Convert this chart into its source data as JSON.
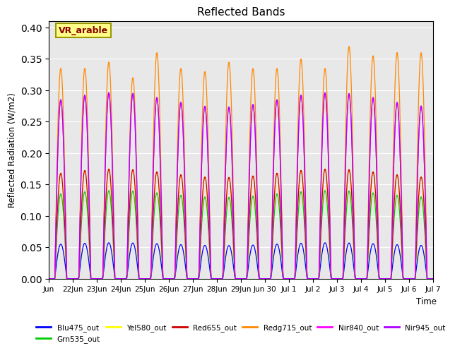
{
  "title": "Reflected Bands",
  "ylabel": "Reflected Radiation (W/m2)",
  "xlabel": "Time",
  "annotation": "VR_arable",
  "ylim": [
    0,
    0.41
  ],
  "background_color": "#e8e8e8",
  "lines": [
    {
      "label": "Blu475_out",
      "color": "#0000ff",
      "peak_scale": 0.055
    },
    {
      "label": "Grn535_out",
      "color": "#00cc00",
      "peak_scale": 0.135
    },
    {
      "label": "Yel580_out",
      "color": "#ffff00",
      "peak_scale": 0.168
    },
    {
      "label": "Red655_out",
      "color": "#cc0000",
      "peak_scale": 0.168
    },
    {
      "label": "Redg715_out",
      "color": "#ff8800",
      "peak_scale": 0.345
    },
    {
      "label": "Nir840_out",
      "color": "#ff00ff",
      "peak_scale": 0.285
    },
    {
      "label": "Nir945_out",
      "color": "#aa00ff",
      "peak_scale": 0.285
    }
  ],
  "tick_labels": [
    "Jun",
    "22Jun",
    "23Jun",
    "24Jun",
    "25Jun",
    "26Jun",
    "27Jun",
    "28Jun",
    "29Jun",
    "Jun 30",
    "Jul 1",
    "Jul 2",
    "Jul 3",
    "Jul 4",
    "Jul 5",
    "Jul 6",
    "Jul 7"
  ],
  "annotation_facecolor": "#ffff88",
  "annotation_edgecolor": "#999900",
  "annotation_textcolor": "#880000",
  "n_days": 16,
  "hours_per_day": 48
}
